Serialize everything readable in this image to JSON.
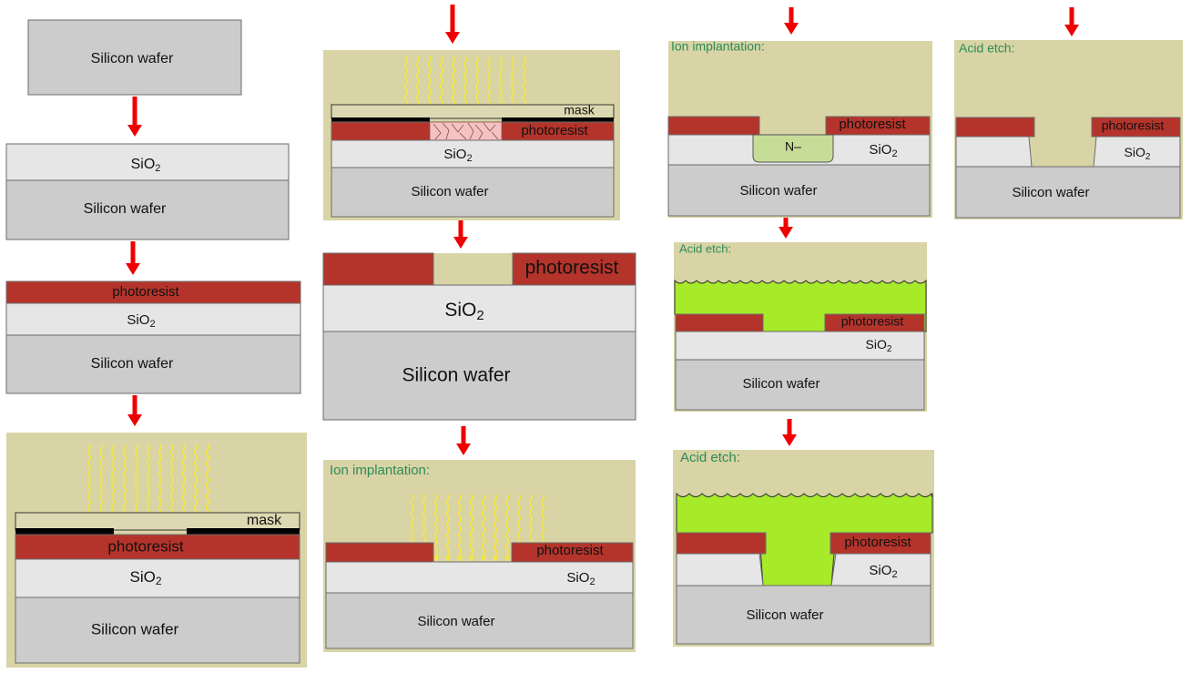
{
  "labels": {
    "silicon_wafer": "Silicon wafer",
    "sio2_base": "SiO",
    "sio2_sub": "2",
    "photoresist": "photoresist",
    "mask": "mask",
    "n_minus": "N–",
    "ion_implantation": "Ion implantation:",
    "acid_etch": "Acid etch:"
  },
  "colors": {
    "silicon": "#cccccc",
    "oxide": "#e6e6e6",
    "photoresist": "#b4342b",
    "exposed_resist": "#f4c2c2",
    "background": "#d8d4a6",
    "acid": "#a6ea2a",
    "n_region": "#c6dd98",
    "arrow": "#ee0000",
    "light": "#f5e642",
    "caption": "#2e8b57"
  },
  "icons": {
    "step_arrow": "red-down-arrow-icon",
    "uv_light": "uv-light-rays-icon",
    "acid_surface": "acid-wave-icon"
  }
}
